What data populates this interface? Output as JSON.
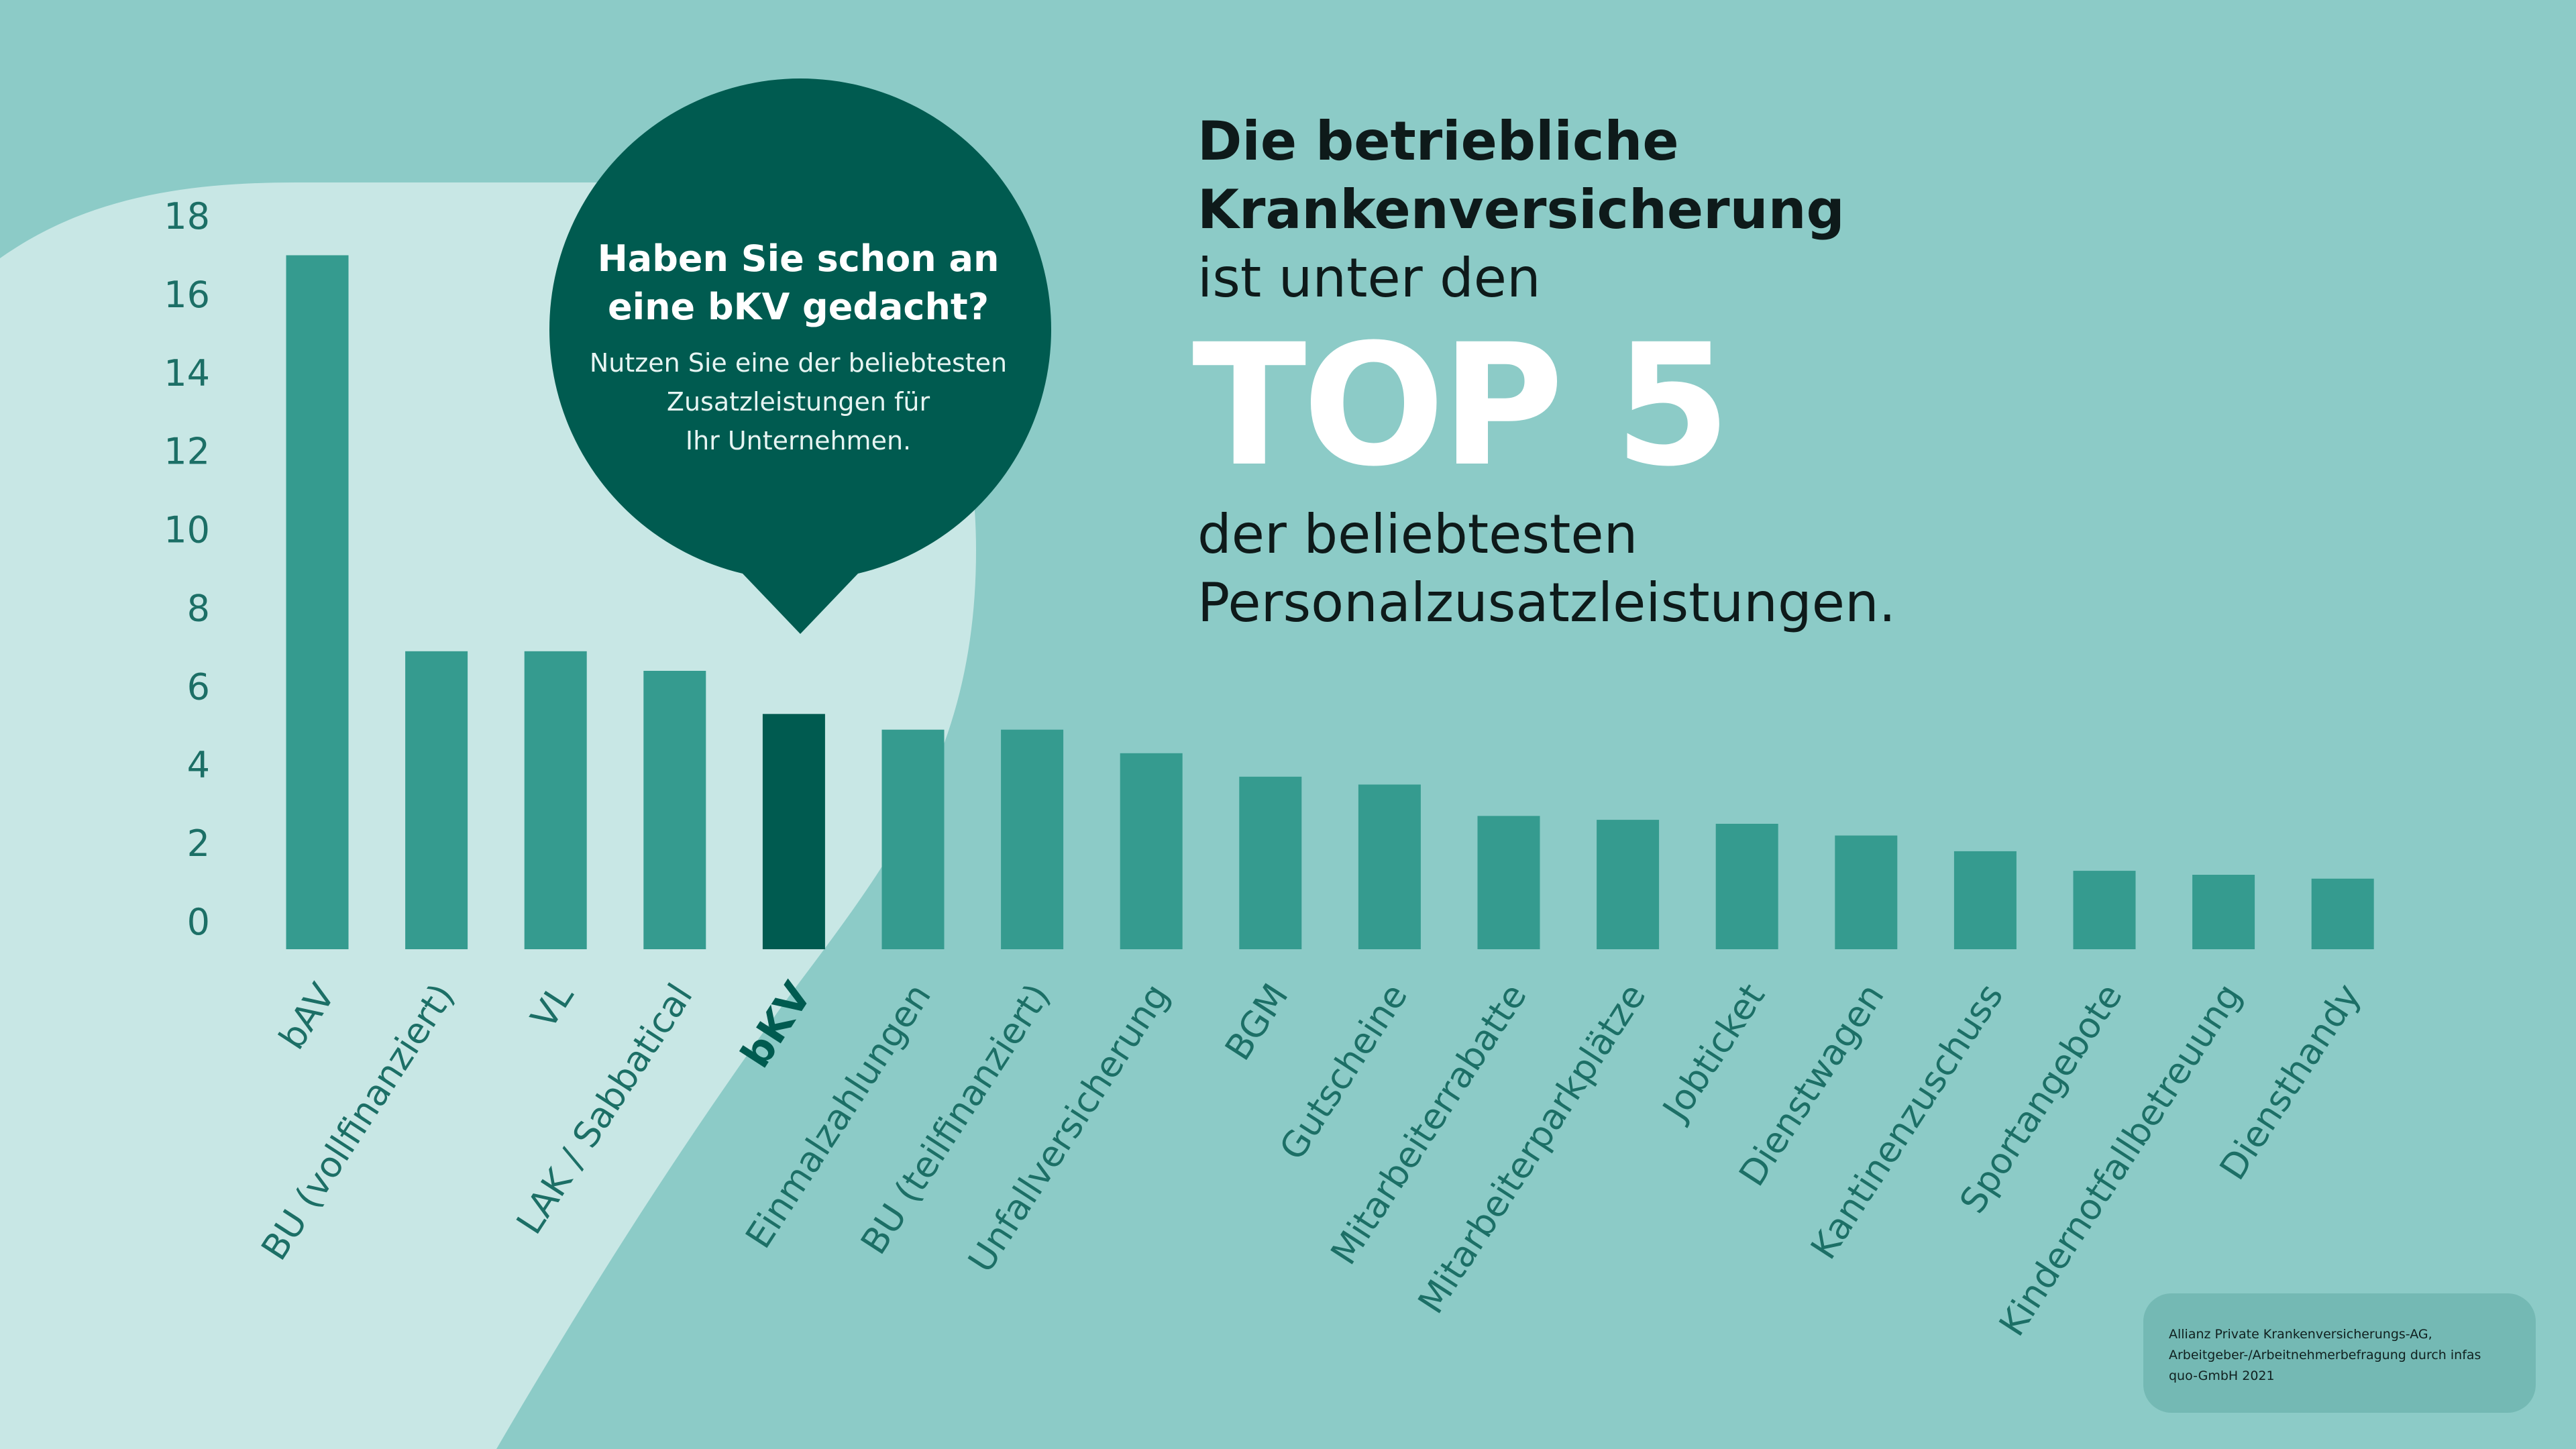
{
  "headline": {
    "line1": "Die betriebliche",
    "line2": "Krankenversicherung",
    "line3": "ist unter den",
    "highlight": "TOP 5",
    "line4": "der beliebtesten",
    "line5": "Personalzusatzleistungen."
  },
  "bubble": {
    "title": "Haben Sie schon an\neine bKV gedacht?",
    "subtitle": "Nutzen Sie eine der beliebtesten\nZusatzleistungen für\nIhr Unternehmen."
  },
  "source": "Allianz Private Krankenversicherungs-AG,\nArbeitgeber-/Arbeitnehmerbefragung durch infas\nquo-GmbH 2021",
  "colors": {
    "background": "#8ccbc7",
    "light_area": "#c8e7e5",
    "bar": "#359b8f",
    "highlight_bar": "#005b50",
    "bubble": "#005b50",
    "axis_text": "#1c6f66"
  },
  "chart_data": {
    "type": "bar",
    "categories": [
      "bAV",
      "BU (vollfinanziert)",
      "VL",
      "LAK / Sabbatical",
      "bKV",
      "Einmalzahlungen",
      "BU (teilfinanziert)",
      "Unfallversicherung",
      "BGM",
      "Gutscheine",
      "Mitarbeiterrabatte",
      "Mitarbeiterparkplätze",
      "Jobticket",
      "Dienstwagen",
      "Kantinenzuschuss",
      "Sportangebote",
      "Kindernotfallbetreuung",
      "Diensthandy"
    ],
    "values": [
      17.7,
      7.6,
      7.6,
      7.1,
      6.0,
      5.6,
      5.6,
      5.0,
      4.4,
      4.2,
      3.4,
      3.3,
      3.2,
      2.9,
      2.5,
      2.0,
      1.9,
      1.8
    ],
    "highlight_index": 4,
    "yticks": [
      0,
      2,
      4,
      6,
      8,
      10,
      12,
      14,
      16,
      18
    ],
    "ylim": [
      0,
      18
    ],
    "title": "",
    "xlabel": "",
    "ylabel": "",
    "grid": false,
    "legend": "none"
  }
}
